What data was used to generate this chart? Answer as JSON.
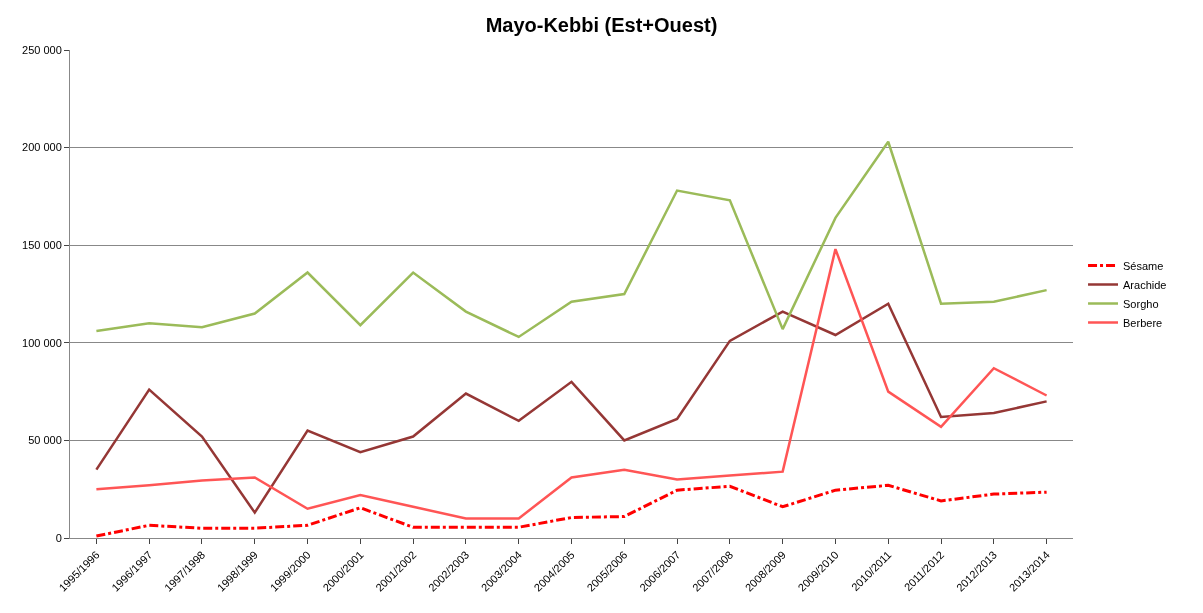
{
  "chart_data": {
    "type": "line",
    "title": "Mayo-Kebbi (Est+Ouest)",
    "categories": [
      "1995/1996",
      "1996/1997",
      "1997/1998",
      "1998/1999",
      "1999/2000",
      "2000/2001",
      "2001/2002",
      "2002/2003",
      "2003/2004",
      "2004/2005",
      "2005/2006",
      "2006/2007",
      "2007/2008",
      "2008/2009",
      "2009/2010",
      "2010/2011",
      "2011/2012",
      "2012/2013",
      "2013/2014"
    ],
    "series": [
      {
        "name": "Sésame",
        "color": "#ff0000",
        "line_style": "dashdot",
        "values": [
          1000,
          6500,
          5000,
          5000,
          6500,
          15500,
          5500,
          5500,
          5500,
          10500,
          11000,
          24500,
          26500,
          16000,
          24500,
          27000,
          19000,
          22500,
          23500
        ]
      },
      {
        "name": "Arachide",
        "color": "#953735",
        "values": [
          35000,
          76000,
          52000,
          13000,
          55000,
          44000,
          52000,
          74000,
          60000,
          80000,
          50000,
          61000,
          101000,
          116000,
          104000,
          120000,
          62000,
          64000,
          70000
        ]
      },
      {
        "name": "Sorgho",
        "color": "#9bbb59",
        "values": [
          106000,
          110000,
          108000,
          115000,
          136000,
          109000,
          136000,
          116000,
          103000,
          121000,
          125000,
          178000,
          173000,
          107000,
          164000,
          203000,
          120000,
          121000,
          127000
        ]
      },
      {
        "name": "Berbere",
        "color": "#ff5555",
        "values": [
          25000,
          27000,
          29500,
          31000,
          15000,
          22000,
          16000,
          10000,
          10000,
          31000,
          35000,
          30000,
          32000,
          34000,
          148000,
          75000,
          57000,
          87000,
          73000
        ]
      }
    ],
    "ylim": [
      0,
      250000
    ],
    "yticks": [
      0,
      {
        "value": 50000,
        "label": "50 000"
      },
      {
        "value": 100000,
        "label": "100 000"
      },
      {
        "value": 150000,
        "label": "150 000"
      },
      {
        "value": 200000,
        "label": "200 000"
      },
      {
        "value": 250000,
        "label": "250 000"
      }
    ],
    "grid": "y",
    "legend": "right",
    "marker": "none",
    "line_style": "solid"
  }
}
